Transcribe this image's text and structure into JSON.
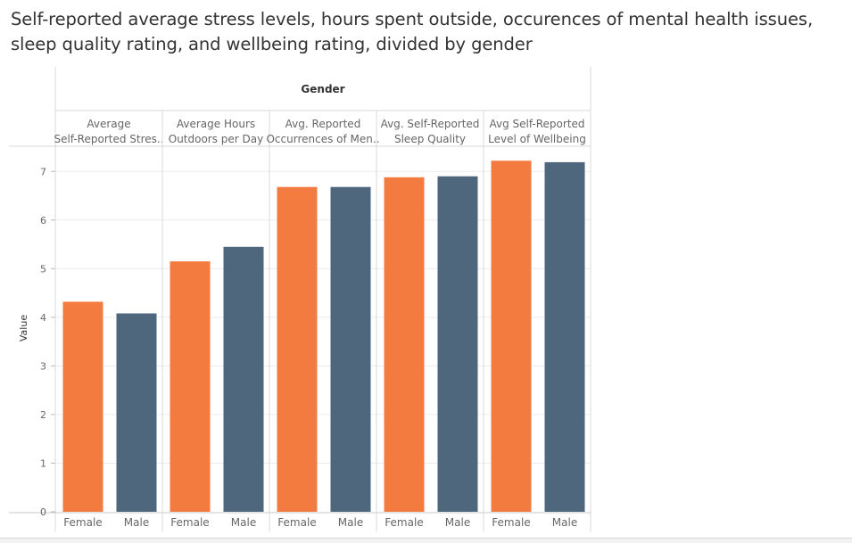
{
  "title": "Self-reported average stress levels, hours spent outside, occurences of mental health issues, sleep quality rating, and wellbeing rating, divided by gender",
  "chart_data": {
    "type": "bar",
    "column_header": "Gender",
    "ylabel": "Value",
    "ylim": [
      0,
      7.5
    ],
    "yticks": [
      "0",
      "1",
      "2",
      "3",
      "4",
      "5",
      "6",
      "7"
    ],
    "grid": true,
    "colors": {
      "Female": "#f47b3f",
      "Male": "#4e677d"
    },
    "panels": [
      {
        "label_lines": [
          "Average",
          "Self-Reported Stres.."
        ],
        "categories": [
          "Female",
          "Male"
        ],
        "values": [
          4.32,
          4.08
        ]
      },
      {
        "label_lines": [
          "Average Hours",
          "Outdoors per Day"
        ],
        "categories": [
          "Female",
          "Male"
        ],
        "values": [
          5.15,
          5.45
        ]
      },
      {
        "label_lines": [
          "Avg. Reported",
          "Occurrences of Men.."
        ],
        "categories": [
          "Female",
          "Male"
        ],
        "values": [
          6.68,
          6.68
        ]
      },
      {
        "label_lines": [
          "Avg. Self-Reported",
          "Sleep Quality"
        ],
        "categories": [
          "Female",
          "Male"
        ],
        "values": [
          6.88,
          6.9
        ]
      },
      {
        "label_lines": [
          "Avg Self-Reported",
          "Level of Wellbeing"
        ],
        "categories": [
          "Female",
          "Male"
        ],
        "values": [
          7.22,
          7.19
        ]
      }
    ]
  }
}
